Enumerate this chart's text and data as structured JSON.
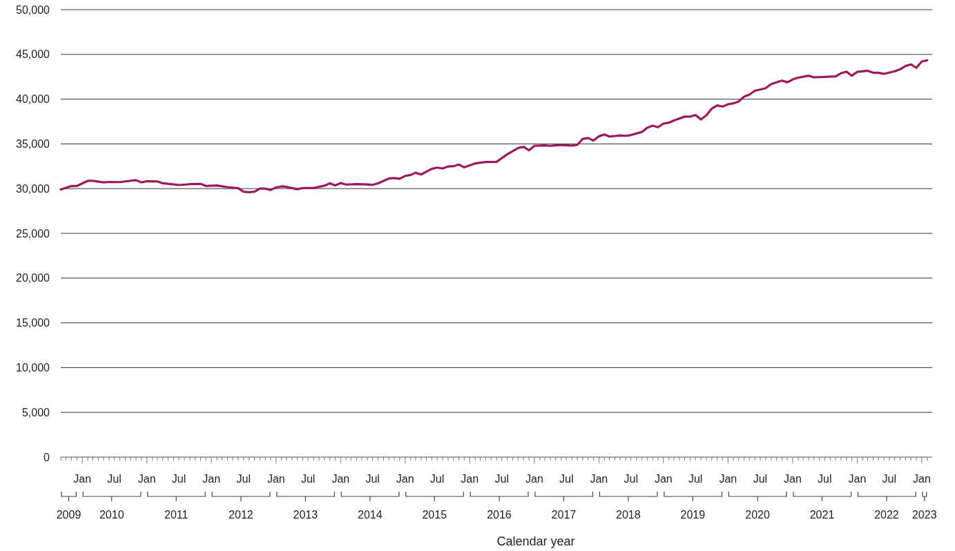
{
  "chart_data": {
    "type": "line",
    "xlabel": "Calendar year",
    "x": [
      "2009-09",
      "2009-11",
      "2009-12",
      "2010-02",
      "2010-03",
      "2010-05",
      "2010-06",
      "2010-08",
      "2010-11",
      "2010-12",
      "2011-01",
      "2011-03",
      "2011-04",
      "2011-07",
      "2011-09",
      "2011-11",
      "2011-12",
      "2012-02",
      "2012-04",
      "2012-06",
      "2012-07",
      "2012-08",
      "2012-09",
      "2012-10",
      "2012-11",
      "2012-12",
      "2013-01",
      "2013-02",
      "2013-03",
      "2013-05",
      "2013-06",
      "2013-08",
      "2013-10",
      "2013-11",
      "2013-12",
      "2014-01",
      "2014-02",
      "2014-04",
      "2014-06",
      "2014-07",
      "2014-08",
      "2014-10",
      "2014-11",
      "2014-12",
      "2015-01",
      "2015-02",
      "2015-03",
      "2015-04",
      "2015-06",
      "2015-07",
      "2015-08",
      "2015-09",
      "2015-10",
      "2015-11",
      "2015-12",
      "2016-02",
      "2016-04",
      "2016-06",
      "2016-08",
      "2016-10",
      "2016-11",
      "2016-12",
      "2017-01",
      "2017-03",
      "2017-04",
      "2017-06",
      "2017-08",
      "2017-09",
      "2017-10",
      "2017-11",
      "2017-12",
      "2018-01",
      "2018-02",
      "2018-03",
      "2018-05",
      "2018-06",
      "2018-07",
      "2018-09",
      "2018-10",
      "2018-11",
      "2018-12",
      "2019-01",
      "2019-02",
      "2019-03",
      "2019-05",
      "2019-06",
      "2019-07",
      "2019-08",
      "2019-09",
      "2019-10",
      "2019-11",
      "2019-12",
      "2020-01",
      "2020-02",
      "2020-03",
      "2020-04",
      "2020-05",
      "2020-06",
      "2020-08",
      "2020-09",
      "2020-11",
      "2020-12",
      "2021-01",
      "2021-02",
      "2021-04",
      "2021-05",
      "2021-07",
      "2021-09",
      "2021-10",
      "2021-11",
      "2021-12",
      "2022-01",
      "2022-03",
      "2022-04",
      "2022-05",
      "2022-06",
      "2022-08",
      "2022-09",
      "2022-10",
      "2022-11",
      "2022-12",
      "2023-01",
      "2023-02"
    ],
    "series": [
      {
        "color": "#9b1b5a",
        "values": [
          29900,
          30300,
          30300,
          30870,
          30870,
          30700,
          30750,
          30730,
          30950,
          30700,
          30830,
          30800,
          30600,
          30400,
          30500,
          30530,
          30300,
          30350,
          30170,
          30040,
          29660,
          29600,
          29660,
          30000,
          30000,
          29850,
          30130,
          30250,
          30200,
          29930,
          30070,
          30070,
          30330,
          30600,
          30370,
          30620,
          30460,
          30500,
          30470,
          30420,
          30590,
          31140,
          31180,
          31100,
          31420,
          31530,
          31780,
          31580,
          32220,
          32350,
          32250,
          32480,
          32510,
          32690,
          32380,
          32820,
          32970,
          33000,
          33840,
          34540,
          34670,
          34280,
          34780,
          34830,
          34780,
          34880,
          34800,
          34900,
          35560,
          35660,
          35380,
          35850,
          36050,
          35820,
          35950,
          35900,
          35990,
          36330,
          36800,
          37040,
          36860,
          37270,
          37370,
          37620,
          38050,
          38050,
          38230,
          37730,
          38190,
          38940,
          39300,
          39170,
          39430,
          39530,
          39740,
          40280,
          40510,
          40930,
          41220,
          41690,
          42070,
          41890,
          42200,
          42400,
          42620,
          42440,
          42490,
          42540,
          42900,
          43080,
          42620,
          43050,
          43180,
          42950,
          42950,
          42820,
          43110,
          43340,
          43700,
          43880,
          43500,
          44210,
          44340
        ]
      }
    ],
    "xlim": [
      "2009-09",
      "2023-03"
    ],
    "ylim": [
      0,
      50000
    ],
    "yticks": [
      {
        "value": 0,
        "label": "0"
      },
      {
        "value": 5000,
        "label": "5,000"
      },
      {
        "value": 10000,
        "label": "10,000"
      },
      {
        "value": 15000,
        "label": "15,000"
      },
      {
        "value": 20000,
        "label": "20,000"
      },
      {
        "value": 25000,
        "label": "25,000"
      },
      {
        "value": 30000,
        "label": "30,000"
      },
      {
        "value": 35000,
        "label": "35,000"
      },
      {
        "value": 40000,
        "label": "40,000"
      },
      {
        "value": 45000,
        "label": "45,000"
      },
      {
        "value": 50000,
        "label": "50,000"
      }
    ],
    "xticks": [
      {
        "value": "2009-09",
        "label": null
      },
      {
        "value": "2009-10",
        "label": null
      },
      {
        "value": "2009-11",
        "label": null
      },
      {
        "value": "2009-12",
        "label": null
      },
      {
        "value": "2010-01",
        "label": "Jan"
      },
      {
        "value": "2010-02",
        "label": null
      },
      {
        "value": "2010-03",
        "label": null
      },
      {
        "value": "2010-04",
        "label": null
      },
      {
        "value": "2010-05",
        "label": null
      },
      {
        "value": "2010-06",
        "label": null
      },
      {
        "value": "2010-07",
        "label": "Jul"
      },
      {
        "value": "2010-08",
        "label": null
      },
      {
        "value": "2010-09",
        "label": null
      },
      {
        "value": "2010-10",
        "label": null
      },
      {
        "value": "2010-11",
        "label": null
      },
      {
        "value": "2010-12",
        "label": null
      },
      {
        "value": "2011-01",
        "label": "Jan"
      },
      {
        "value": "2011-02",
        "label": null
      },
      {
        "value": "2011-03",
        "label": null
      },
      {
        "value": "2011-04",
        "label": null
      },
      {
        "value": "2011-05",
        "label": null
      },
      {
        "value": "2011-06",
        "label": null
      },
      {
        "value": "2011-07",
        "label": "Jul"
      },
      {
        "value": "2011-08",
        "label": null
      },
      {
        "value": "2011-09",
        "label": null
      },
      {
        "value": "2011-10",
        "label": null
      },
      {
        "value": "2011-11",
        "label": null
      },
      {
        "value": "2011-12",
        "label": null
      },
      {
        "value": "2012-01",
        "label": "Jan"
      },
      {
        "value": "2012-02",
        "label": null
      },
      {
        "value": "2012-03",
        "label": null
      },
      {
        "value": "2012-04",
        "label": null
      },
      {
        "value": "2012-05",
        "label": null
      },
      {
        "value": "2012-06",
        "label": null
      },
      {
        "value": "2012-07",
        "label": "Jul"
      },
      {
        "value": "2012-08",
        "label": null
      },
      {
        "value": "2012-09",
        "label": null
      },
      {
        "value": "2012-10",
        "label": null
      },
      {
        "value": "2012-11",
        "label": null
      },
      {
        "value": "2012-12",
        "label": null
      },
      {
        "value": "2013-01",
        "label": "Jan"
      },
      {
        "value": "2013-02",
        "label": null
      },
      {
        "value": "2013-03",
        "label": null
      },
      {
        "value": "2013-04",
        "label": null
      },
      {
        "value": "2013-05",
        "label": null
      },
      {
        "value": "2013-06",
        "label": null
      },
      {
        "value": "2013-07",
        "label": "Jul"
      },
      {
        "value": "2013-08",
        "label": null
      },
      {
        "value": "2013-09",
        "label": null
      },
      {
        "value": "2013-10",
        "label": null
      },
      {
        "value": "2013-11",
        "label": null
      },
      {
        "value": "2013-12",
        "label": null
      },
      {
        "value": "2014-01",
        "label": "Jan"
      },
      {
        "value": "2014-02",
        "label": null
      },
      {
        "value": "2014-03",
        "label": null
      },
      {
        "value": "2014-04",
        "label": null
      },
      {
        "value": "2014-05",
        "label": null
      },
      {
        "value": "2014-06",
        "label": null
      },
      {
        "value": "2014-07",
        "label": "Jul"
      },
      {
        "value": "2014-08",
        "label": null
      },
      {
        "value": "2014-09",
        "label": null
      },
      {
        "value": "2014-10",
        "label": null
      },
      {
        "value": "2014-11",
        "label": null
      },
      {
        "value": "2014-12",
        "label": null
      },
      {
        "value": "2015-01",
        "label": "Jan"
      },
      {
        "value": "2015-02",
        "label": null
      },
      {
        "value": "2015-03",
        "label": null
      },
      {
        "value": "2015-04",
        "label": null
      },
      {
        "value": "2015-05",
        "label": null
      },
      {
        "value": "2015-06",
        "label": null
      },
      {
        "value": "2015-07",
        "label": "Jul"
      },
      {
        "value": "2015-08",
        "label": null
      },
      {
        "value": "2015-09",
        "label": null
      },
      {
        "value": "2015-10",
        "label": null
      },
      {
        "value": "2015-11",
        "label": null
      },
      {
        "value": "2015-12",
        "label": null
      },
      {
        "value": "2016-01",
        "label": "Jan"
      },
      {
        "value": "2016-02",
        "label": null
      },
      {
        "value": "2016-03",
        "label": null
      },
      {
        "value": "2016-04",
        "label": null
      },
      {
        "value": "2016-05",
        "label": null
      },
      {
        "value": "2016-06",
        "label": null
      },
      {
        "value": "2016-07",
        "label": "Jul"
      },
      {
        "value": "2016-08",
        "label": null
      },
      {
        "value": "2016-09",
        "label": null
      },
      {
        "value": "2016-10",
        "label": null
      },
      {
        "value": "2016-11",
        "label": null
      },
      {
        "value": "2016-12",
        "label": null
      },
      {
        "value": "2017-01",
        "label": "Jan"
      },
      {
        "value": "2017-02",
        "label": null
      },
      {
        "value": "2017-03",
        "label": null
      },
      {
        "value": "2017-04",
        "label": null
      },
      {
        "value": "2017-05",
        "label": null
      },
      {
        "value": "2017-06",
        "label": null
      },
      {
        "value": "2017-07",
        "label": "Jul"
      },
      {
        "value": "2017-08",
        "label": null
      },
      {
        "value": "2017-09",
        "label": null
      },
      {
        "value": "2017-10",
        "label": null
      },
      {
        "value": "2017-11",
        "label": null
      },
      {
        "value": "2017-12",
        "label": null
      },
      {
        "value": "2018-01",
        "label": "Jan"
      },
      {
        "value": "2018-02",
        "label": null
      },
      {
        "value": "2018-03",
        "label": null
      },
      {
        "value": "2018-04",
        "label": null
      },
      {
        "value": "2018-05",
        "label": null
      },
      {
        "value": "2018-06",
        "label": null
      },
      {
        "value": "2018-07",
        "label": "Jul"
      },
      {
        "value": "2018-08",
        "label": null
      },
      {
        "value": "2018-09",
        "label": null
      },
      {
        "value": "2018-10",
        "label": null
      },
      {
        "value": "2018-11",
        "label": null
      },
      {
        "value": "2018-12",
        "label": null
      },
      {
        "value": "2019-01",
        "label": "Jan"
      },
      {
        "value": "2019-02",
        "label": null
      },
      {
        "value": "2019-03",
        "label": null
      },
      {
        "value": "2019-04",
        "label": null
      },
      {
        "value": "2019-05",
        "label": null
      },
      {
        "value": "2019-06",
        "label": null
      },
      {
        "value": "2019-07",
        "label": "Jul"
      },
      {
        "value": "2019-08",
        "label": null
      },
      {
        "value": "2019-09",
        "label": null
      },
      {
        "value": "2019-10",
        "label": null
      },
      {
        "value": "2019-11",
        "label": null
      },
      {
        "value": "2019-12",
        "label": null
      },
      {
        "value": "2020-01",
        "label": "Jan"
      },
      {
        "value": "2020-02",
        "label": null
      },
      {
        "value": "2020-03",
        "label": null
      },
      {
        "value": "2020-04",
        "label": null
      },
      {
        "value": "2020-05",
        "label": null
      },
      {
        "value": "2020-06",
        "label": null
      },
      {
        "value": "2020-07",
        "label": "Jul"
      },
      {
        "value": "2020-08",
        "label": null
      },
      {
        "value": "2020-09",
        "label": null
      },
      {
        "value": "2020-10",
        "label": null
      },
      {
        "value": "2020-11",
        "label": null
      },
      {
        "value": "2020-12",
        "label": null
      },
      {
        "value": "2021-01",
        "label": "Jan"
      },
      {
        "value": "2021-02",
        "label": null
      },
      {
        "value": "2021-03",
        "label": null
      },
      {
        "value": "2021-04",
        "label": null
      },
      {
        "value": "2021-05",
        "label": null
      },
      {
        "value": "2021-06",
        "label": null
      },
      {
        "value": "2021-07",
        "label": "Jul"
      },
      {
        "value": "2021-08",
        "label": null
      },
      {
        "value": "2021-09",
        "label": null
      },
      {
        "value": "2021-10",
        "label": null
      },
      {
        "value": "2021-11",
        "label": null
      },
      {
        "value": "2021-12",
        "label": null
      },
      {
        "value": "2022-01",
        "label": "Jan"
      },
      {
        "value": "2022-02",
        "label": null
      },
      {
        "value": "2022-03",
        "label": null
      },
      {
        "value": "2022-04",
        "label": null
      },
      {
        "value": "2022-05",
        "label": null
      },
      {
        "value": "2022-06",
        "label": null
      },
      {
        "value": "2022-07",
        "label": "Jul"
      },
      {
        "value": "2022-08",
        "label": null
      },
      {
        "value": "2022-09",
        "label": null
      },
      {
        "value": "2022-10",
        "label": null
      },
      {
        "value": "2022-11",
        "label": null
      },
      {
        "value": "2022-12",
        "label": null
      },
      {
        "value": "2023-01",
        "label": "Jan"
      },
      {
        "value": "2023-02",
        "label": null
      }
    ],
    "x2lim": [
      "2009-09",
      "2023-03"
    ],
    "x2ticks": [
      {
        "value": "2009-10-16",
        "label": "2009"
      },
      {
        "value": "2010-06-16",
        "label": "2010"
      },
      {
        "value": "2011-06-16",
        "label": "2011"
      },
      {
        "value": "2012-06-16",
        "label": "2012"
      },
      {
        "value": "2013-06-16",
        "label": "2013"
      },
      {
        "value": "2014-06-16",
        "label": "2014"
      },
      {
        "value": "2015-06-16",
        "label": "2015"
      },
      {
        "value": "2016-06-16",
        "label": "2016"
      },
      {
        "value": "2017-06-16",
        "label": "2017"
      },
      {
        "value": "2018-06-16",
        "label": "2018"
      },
      {
        "value": "2019-06-16",
        "label": "2019"
      },
      {
        "value": "2020-06-16",
        "label": "2020"
      },
      {
        "value": "2021-06-16",
        "label": "2021"
      },
      {
        "value": "2022-06-16",
        "label": "2022"
      },
      {
        "value": "2023-01-16",
        "label": "2023"
      }
    ],
    "grid": "y",
    "marker": "none",
    "line_style": "solid"
  }
}
